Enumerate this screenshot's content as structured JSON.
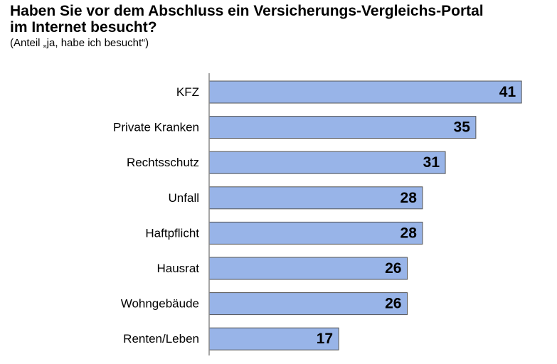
{
  "title_line1": "Haben Sie vor dem Abschluss ein Versicherungs-Vergleichs-Portal",
  "title_line2": "im Internet besucht?",
  "subtitle": "(Anteil „ja, habe ich besucht“)",
  "chart_data": {
    "type": "bar",
    "orientation": "horizontal",
    "title": "Haben Sie vor dem Abschluss ein Versicherungs-Vergleichs-Portal im Internet besucht?",
    "subtitle": "(Anteil „ja, habe ich besucht“)",
    "categories": [
      "KFZ",
      "Private Kranken",
      "Rechtsschutz",
      "Unfall",
      "Haftpflicht",
      "Hausrat",
      "Wohngebäude",
      "Renten/Leben"
    ],
    "values": [
      41,
      35,
      31,
      28,
      28,
      26,
      26,
      17
    ],
    "xlim": [
      0,
      45
    ],
    "grid": false,
    "legend": "none",
    "bar_color": "#98b4e8",
    "bar_border_color": "#555555"
  }
}
